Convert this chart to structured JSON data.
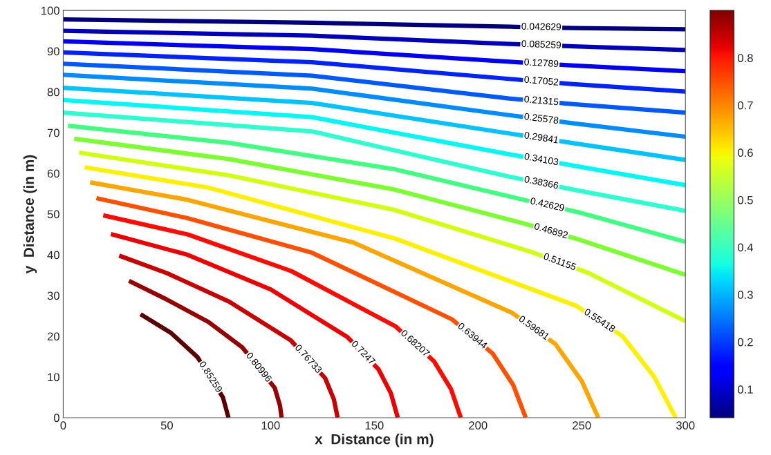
{
  "chart_data": {
    "type": "line",
    "xlabel": "x  Distance (in m)",
    "ylabel": "y  Distance (in m)",
    "xlim": [
      0,
      300
    ],
    "xticks": [
      0,
      50,
      100,
      150,
      200,
      250,
      300
    ],
    "ylim": [
      0,
      100
    ],
    "yticks": [
      0,
      10,
      20,
      30,
      40,
      50,
      60,
      70,
      80,
      90,
      100
    ],
    "grid": false,
    "legend": false,
    "marker": "none",
    "line_style": "solid",
    "clim": [
      0.04,
      0.9
    ],
    "cticks": [
      0.1,
      0.2,
      0.3,
      0.4,
      0.5,
      0.6,
      0.7,
      0.8
    ],
    "series": [
      {
        "name": "0.042629",
        "color": "#00007f",
        "x": [
          0,
          120,
          215,
          246,
          300
        ],
        "values": [
          97.8,
          97,
          96,
          95.7,
          95.4
        ]
      },
      {
        "name": "0.085259",
        "color": "#0000bc",
        "x": [
          0,
          120,
          215,
          246,
          300
        ],
        "values": [
          95,
          93.8,
          91.8,
          91.2,
          90.3
        ]
      },
      {
        "name": "0.12789",
        "color": "#0000f7",
        "x": [
          0,
          120,
          215,
          246,
          300
        ],
        "values": [
          92.4,
          90.5,
          87.4,
          86.5,
          85.1
        ]
      },
      {
        "name": "0.17052",
        "color": "#0022ff",
        "x": [
          0,
          120,
          215,
          246,
          300
        ],
        "values": [
          89.7,
          87.3,
          83.2,
          81.9,
          80.1
        ]
      },
      {
        "name": "0.21315",
        "color": "#0058ff",
        "x": [
          0,
          120,
          215,
          246,
          300
        ],
        "values": [
          86.9,
          84,
          78.4,
          77,
          74.9
        ]
      },
      {
        "name": "0.25578",
        "color": "#008cff",
        "x": [
          0,
          120,
          215,
          246,
          300
        ],
        "values": [
          84.2,
          80.8,
          74.3,
          72.3,
          69
        ]
      },
      {
        "name": "0.29841",
        "color": "#00c3ff",
        "x": [
          0,
          120,
          215,
          246,
          300
        ],
        "values": [
          81,
          77.3,
          69.8,
          67.4,
          63.3
        ]
      },
      {
        "name": "0.34103",
        "color": "#02f8f4",
        "x": [
          0,
          120,
          215,
          246,
          300
        ],
        "values": [
          78,
          73.8,
          64.7,
          61.9,
          57.1
        ]
      },
      {
        "name": "0.38366",
        "color": "#2effd1",
        "x": [
          0,
          120,
          215,
          246,
          300
        ],
        "values": [
          74.9,
          70.3,
          59.2,
          56,
          50.8
        ]
      },
      {
        "name": "0.42629",
        "color": "#40ff80",
        "x": [
          2.3,
          80,
          160,
          218.7,
          248,
          300
        ],
        "values": [
          71.7,
          67.5,
          61,
          53.9,
          50.5,
          43.2
        ]
      },
      {
        "name": "0.46892",
        "color": "#7cff30",
        "x": [
          5.3,
          80,
          160,
          221.3,
          249,
          300
        ],
        "values": [
          68.5,
          63.5,
          56,
          47.8,
          43.7,
          35.1
        ]
      },
      {
        "name": "0.51155",
        "color": "#d1ff10",
        "x": [
          7.7,
          80,
          160,
          225.7,
          253,
          300
        ],
        "values": [
          65.1,
          59.5,
          51,
          40.7,
          35.6,
          23.7
        ]
      },
      {
        "name": "0.55418",
        "color": "#fff000",
        "x": [
          10.3,
          70,
          160,
          247.3,
          269.7,
          285,
          295.3
        ],
        "values": [
          61.5,
          56.5,
          44,
          27.5,
          20,
          10,
          0
        ]
      },
      {
        "name": "0.59681",
        "color": "#ffa500",
        "x": [
          13,
          60,
          140,
          216.3,
          237.3,
          250,
          258
        ],
        "values": [
          57.8,
          53.5,
          43,
          25.8,
          18.1,
          9,
          0
        ]
      },
      {
        "name": "0.63944",
        "color": "#ff5000",
        "x": [
          16,
          60,
          120,
          187.3,
          207,
          217,
          223
        ],
        "values": [
          53.9,
          49,
          40.5,
          24.2,
          15.8,
          8,
          0
        ]
      },
      {
        "name": "0.68207",
        "color": "#ff0a00",
        "x": [
          19.3,
          60,
          110,
          160.3,
          178.7,
          187,
          191.7
        ],
        "values": [
          49.7,
          45,
          36,
          22.4,
          13.9,
          7,
          0
        ]
      },
      {
        "name": "0.7247",
        "color": "#ee0000",
        "x": [
          23,
          60,
          100,
          137,
          152,
          158,
          161.3
        ],
        "values": [
          45.1,
          40,
          31.5,
          19.8,
          11.9,
          6,
          0
        ]
      },
      {
        "name": "0.76733",
        "color": "#c80000",
        "x": [
          27,
          50,
          80,
          109.7,
          126.3,
          130.5,
          132.3
        ],
        "values": [
          39.8,
          35.5,
          28.5,
          19,
          9.7,
          4.5,
          0
        ]
      },
      {
        "name": "0.80996",
        "color": "#960000",
        "x": [
          31.7,
          50,
          70,
          86.3,
          102,
          104.5,
          105.3
        ],
        "values": [
          33.6,
          29,
          23.5,
          17.3,
          7.3,
          3,
          0
        ]
      },
      {
        "name": "0.85259",
        "color": "#5a0000",
        "x": [
          37.3,
          52,
          64.7,
          77,
          79.7
        ],
        "values": [
          25.4,
          20.8,
          14.9,
          5,
          0
        ]
      }
    ]
  }
}
